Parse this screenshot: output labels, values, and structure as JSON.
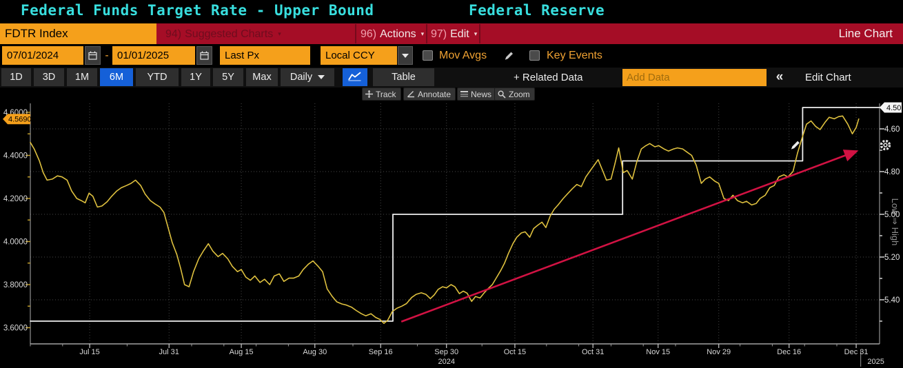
{
  "window": {
    "title": "Federal Funds Target Rate - Upper Bound",
    "source": "Federal Reserve"
  },
  "menu": {
    "security": "FDTR Index",
    "items": [
      {
        "id": "suggested-charts",
        "prefix": "94)",
        "text": "Suggested Charts",
        "arrow": true,
        "dimmed": true
      },
      {
        "id": "actions",
        "prefix": "96)",
        "text": "Actions",
        "arrow": true,
        "dimmed": false
      },
      {
        "id": "edit",
        "prefix": "97)",
        "text": "Edit",
        "arrow": true,
        "dimmed": false
      }
    ],
    "chart_type": "Line Chart"
  },
  "controls": {
    "date_from": "07/01/2024",
    "separator": "-",
    "date_to": "01/01/2025",
    "price_field": "Last Px",
    "currency": "Local CCY",
    "mov_avgs_label": "Mov Avgs",
    "mov_avgs_checked": false,
    "key_events_label": "Key Events",
    "key_events_checked": false
  },
  "toolbar": {
    "range_tabs": [
      {
        "label": "1D"
      },
      {
        "label": "3D"
      },
      {
        "label": "1M"
      },
      {
        "label": "6M",
        "active": true
      },
      {
        "label": "YTD"
      },
      {
        "label": "1Y"
      },
      {
        "label": "5Y"
      },
      {
        "label": "Max"
      }
    ],
    "frequency": "Daily",
    "table_label": "Table",
    "related_data_label": "+ Related Data",
    "add_data_placeholder": "Add Data",
    "collapse_label": "«",
    "edit_chart_label": "Edit Chart"
  },
  "chart_tools": [
    {
      "id": "track",
      "label": "Track"
    },
    {
      "id": "annotate",
      "label": "Annotate"
    },
    {
      "id": "news",
      "label": "News"
    },
    {
      "id": "zoom",
      "label": "Zoom"
    }
  ],
  "chart_data": {
    "type": "line",
    "title": "Federal Funds Target Rate - Upper Bound (FDTR Index)",
    "x_axis": {
      "unit": "trading-day index from 2024-07-01",
      "range": [
        0,
        131.6
      ],
      "ticks": [
        {
          "label": "Jul 15",
          "td": 9.2
        },
        {
          "label": "Jul 31",
          "td": 21.5
        },
        {
          "label": "Aug 15",
          "td": 32.7
        },
        {
          "label": "Aug 30",
          "td": 44.1
        },
        {
          "label": "Sep 16",
          "td": 54.3
        },
        {
          "label": "Sep 30",
          "td": 64.5
        },
        {
          "label": "Oct 15",
          "td": 75.1
        },
        {
          "label": "Oct 31",
          "td": 87.2
        },
        {
          "label": "Nov 15",
          "td": 97.3
        },
        {
          "label": "Nov 29",
          "td": 106.7
        },
        {
          "label": "Dec 16",
          "td": 117.6
        },
        {
          "label": "Dec 31",
          "td": 128.0
        }
      ],
      "year_labels": [
        {
          "label": "2024",
          "td": 64.5,
          "divider": false
        },
        {
          "label": "2025",
          "td": 130.2,
          "divider": true
        }
      ]
    },
    "left_axis": {
      "range": [
        3.55,
        4.64
      ],
      "tick_labels": [
        {
          "value": 4.6,
          "label": "4.6000"
        },
        {
          "value": 4.4,
          "label": "4.4000"
        },
        {
          "value": 4.2,
          "label": "4.2000"
        },
        {
          "value": 4.0,
          "label": "4.0000"
        },
        {
          "value": 3.8,
          "label": "3.8000"
        },
        {
          "value": 3.6,
          "label": "3.6000"
        }
      ],
      "minor_step": 0.1,
      "last_price": {
        "value": 4.569,
        "label": "4.5690",
        "badge_color": "#f5a01b"
      }
    },
    "right_axis": {
      "inverted": true,
      "range": [
        4.48,
        5.61
      ],
      "tick_labels": [
        {
          "value": 4.6,
          "label": "4.60"
        },
        {
          "value": 4.8,
          "label": "4.80"
        },
        {
          "value": 5.0,
          "label": "5.00"
        },
        {
          "value": 5.2,
          "label": "5.20"
        },
        {
          "value": 5.4,
          "label": "5.40"
        }
      ],
      "minor_step": 0.1,
      "direction_label": "Low ⇒ High",
      "last_value": {
        "value": 4.5,
        "label": "4.50",
        "badge_color": "#f5f5f5"
      }
    },
    "grid": {
      "style": "dotted",
      "h_lines_right_axis": [
        4.6,
        4.8,
        5.0,
        5.2,
        5.4
      ],
      "v_lines_at_x_ticks": true
    },
    "series": [
      {
        "name": "FDTR Index - Last Px",
        "axis": "left",
        "color": "#dfc13f",
        "points": [
          [
            0,
            4.46
          ],
          [
            0.6,
            4.43
          ],
          [
            1.4,
            4.375
          ],
          [
            2,
            4.32
          ],
          [
            2.6,
            4.285
          ],
          [
            3.4,
            4.29
          ],
          [
            4.2,
            4.305
          ],
          [
            4.9,
            4.3
          ],
          [
            5.7,
            4.285
          ],
          [
            6.4,
            4.235
          ],
          [
            7.2,
            4.2
          ],
          [
            7.9,
            4.19
          ],
          [
            8.5,
            4.18
          ],
          [
            9.1,
            4.225
          ],
          [
            9.7,
            4.21
          ],
          [
            10.4,
            4.16
          ],
          [
            11.1,
            4.165
          ],
          [
            11.9,
            4.185
          ],
          [
            12.6,
            4.21
          ],
          [
            13.4,
            4.235
          ],
          [
            14.1,
            4.25
          ],
          [
            14.9,
            4.26
          ],
          [
            15.6,
            4.27
          ],
          [
            16.3,
            4.285
          ],
          [
            17.1,
            4.26
          ],
          [
            17.8,
            4.22
          ],
          [
            18.6,
            4.19
          ],
          [
            19.3,
            4.175
          ],
          [
            20.1,
            4.16
          ],
          [
            20.7,
            4.135
          ],
          [
            21.4,
            4.06
          ],
          [
            22,
            3.995
          ],
          [
            22.7,
            3.94
          ],
          [
            23.3,
            3.875
          ],
          [
            23.9,
            3.8
          ],
          [
            24.6,
            3.79
          ],
          [
            25.3,
            3.86
          ],
          [
            26.1,
            3.92
          ],
          [
            26.8,
            3.955
          ],
          [
            27.6,
            3.99
          ],
          [
            28.3,
            3.955
          ],
          [
            29.1,
            3.93
          ],
          [
            29.8,
            3.945
          ],
          [
            30.6,
            3.92
          ],
          [
            31.3,
            3.885
          ],
          [
            32.1,
            3.86
          ],
          [
            32.7,
            3.87
          ],
          [
            33.4,
            3.835
          ],
          [
            34.1,
            3.82
          ],
          [
            34.8,
            3.84
          ],
          [
            35.6,
            3.81
          ],
          [
            36.3,
            3.825
          ],
          [
            37.1,
            3.8
          ],
          [
            37.8,
            3.84
          ],
          [
            38.6,
            3.85
          ],
          [
            39.3,
            3.815
          ],
          [
            40.1,
            3.83
          ],
          [
            40.8,
            3.83
          ],
          [
            41.6,
            3.84
          ],
          [
            42.3,
            3.87
          ],
          [
            43.1,
            3.895
          ],
          [
            43.8,
            3.91
          ],
          [
            44.6,
            3.885
          ],
          [
            45.3,
            3.86
          ],
          [
            46,
            3.78
          ],
          [
            46.8,
            3.745
          ],
          [
            47.5,
            3.72
          ],
          [
            48.3,
            3.71
          ],
          [
            49,
            3.705
          ],
          [
            49.8,
            3.695
          ],
          [
            50.5,
            3.68
          ],
          [
            51.3,
            3.665
          ],
          [
            52,
            3.655
          ],
          [
            52.8,
            3.665
          ],
          [
            53.5,
            3.648
          ],
          [
            54.2,
            3.638
          ],
          [
            54.8,
            3.62
          ],
          [
            55.4,
            3.635
          ],
          [
            56.1,
            3.675
          ],
          [
            56.8,
            3.69
          ],
          [
            57.6,
            3.7
          ],
          [
            58.3,
            3.712
          ],
          [
            59.1,
            3.74
          ],
          [
            59.8,
            3.755
          ],
          [
            60.6,
            3.762
          ],
          [
            61.3,
            3.755
          ],
          [
            62,
            3.735
          ],
          [
            62.6,
            3.752
          ],
          [
            63.2,
            3.778
          ],
          [
            63.9,
            3.79
          ],
          [
            64.5,
            3.785
          ],
          [
            65.2,
            3.8
          ],
          [
            65.8,
            3.79
          ],
          [
            66.5,
            3.758
          ],
          [
            67.1,
            3.77
          ],
          [
            67.7,
            3.76
          ],
          [
            68.4,
            3.722
          ],
          [
            69,
            3.745
          ],
          [
            69.7,
            3.738
          ],
          [
            70.3,
            3.76
          ],
          [
            70.9,
            3.78
          ],
          [
            71.6,
            3.8
          ],
          [
            72.2,
            3.83
          ],
          [
            72.9,
            3.865
          ],
          [
            73.5,
            3.9
          ],
          [
            74.1,
            3.945
          ],
          [
            74.8,
            3.99
          ],
          [
            75.4,
            4.02
          ],
          [
            76.1,
            4.04
          ],
          [
            76.7,
            4.045
          ],
          [
            77.4,
            4.02
          ],
          [
            78,
            4.06
          ],
          [
            78.6,
            4.075
          ],
          [
            79.3,
            4.09
          ],
          [
            79.9,
            4.065
          ],
          [
            80.6,
            4.12
          ],
          [
            81.2,
            4.15
          ],
          [
            81.8,
            4.17
          ],
          [
            82.6,
            4.2
          ],
          [
            83.2,
            4.22
          ],
          [
            84,
            4.245
          ],
          [
            84.7,
            4.265
          ],
          [
            85.4,
            4.255
          ],
          [
            86.1,
            4.3
          ],
          [
            86.8,
            4.33
          ],
          [
            87.4,
            4.355
          ],
          [
            88,
            4.38
          ],
          [
            88.7,
            4.33
          ],
          [
            89.3,
            4.285
          ],
          [
            90,
            4.29
          ],
          [
            90.6,
            4.36
          ],
          [
            91.2,
            4.435
          ],
          [
            91.9,
            4.32
          ],
          [
            92.5,
            4.33
          ],
          [
            93.3,
            4.29
          ],
          [
            94,
            4.37
          ],
          [
            94.7,
            4.43
          ],
          [
            95.4,
            4.445
          ],
          [
            96,
            4.455
          ],
          [
            96.8,
            4.44
          ],
          [
            97.4,
            4.445
          ],
          [
            98.2,
            4.43
          ],
          [
            98.9,
            4.42
          ],
          [
            99.7,
            4.43
          ],
          [
            100.3,
            4.435
          ],
          [
            101.1,
            4.43
          ],
          [
            101.8,
            4.415
          ],
          [
            102.5,
            4.4
          ],
          [
            103.2,
            4.355
          ],
          [
            104,
            4.27
          ],
          [
            104.6,
            4.29
          ],
          [
            105.3,
            4.3
          ],
          [
            106.1,
            4.28
          ],
          [
            106.7,
            4.27
          ],
          [
            107.5,
            4.2
          ],
          [
            108.2,
            4.19
          ],
          [
            108.9,
            4.215
          ],
          [
            109.6,
            4.19
          ],
          [
            110.4,
            4.18
          ],
          [
            111,
            4.187
          ],
          [
            111.8,
            4.17
          ],
          [
            112.5,
            4.177
          ],
          [
            113.1,
            4.2
          ],
          [
            113.9,
            4.215
          ],
          [
            114.6,
            4.25
          ],
          [
            115.3,
            4.26
          ],
          [
            116,
            4.3
          ],
          [
            116.8,
            4.31
          ],
          [
            117.4,
            4.3
          ],
          [
            118.2,
            4.325
          ],
          [
            118.9,
            4.41
          ],
          [
            119.6,
            4.48
          ],
          [
            120.3,
            4.545
          ],
          [
            121,
            4.56
          ],
          [
            121.7,
            4.535
          ],
          [
            122.4,
            4.52
          ],
          [
            123.2,
            4.555
          ],
          [
            123.8,
            4.577
          ],
          [
            124.6,
            4.57
          ],
          [
            125.3,
            4.58
          ],
          [
            125.9,
            4.583
          ],
          [
            126.7,
            4.545
          ],
          [
            127.4,
            4.5
          ],
          [
            128,
            4.53
          ],
          [
            128.4,
            4.569
          ]
        ]
      },
      {
        "name": "target-rate-upper-bound-step",
        "axis": "right",
        "color": "#f0f0f0",
        "points": [
          [
            0,
            5.5
          ],
          [
            56.2,
            5.5
          ],
          [
            56.2,
            5.0
          ],
          [
            91.8,
            5.0
          ],
          [
            91.8,
            4.75
          ],
          [
            119.7,
            4.75
          ],
          [
            119.7,
            4.5
          ],
          [
            131.6,
            4.5
          ]
        ]
      }
    ],
    "annotations": [
      {
        "type": "trend-arrow",
        "axis": "left",
        "color": "#d11243",
        "from": [
          57.5,
          3.628
        ],
        "to": [
          128.1,
          4.42
        ]
      }
    ]
  }
}
